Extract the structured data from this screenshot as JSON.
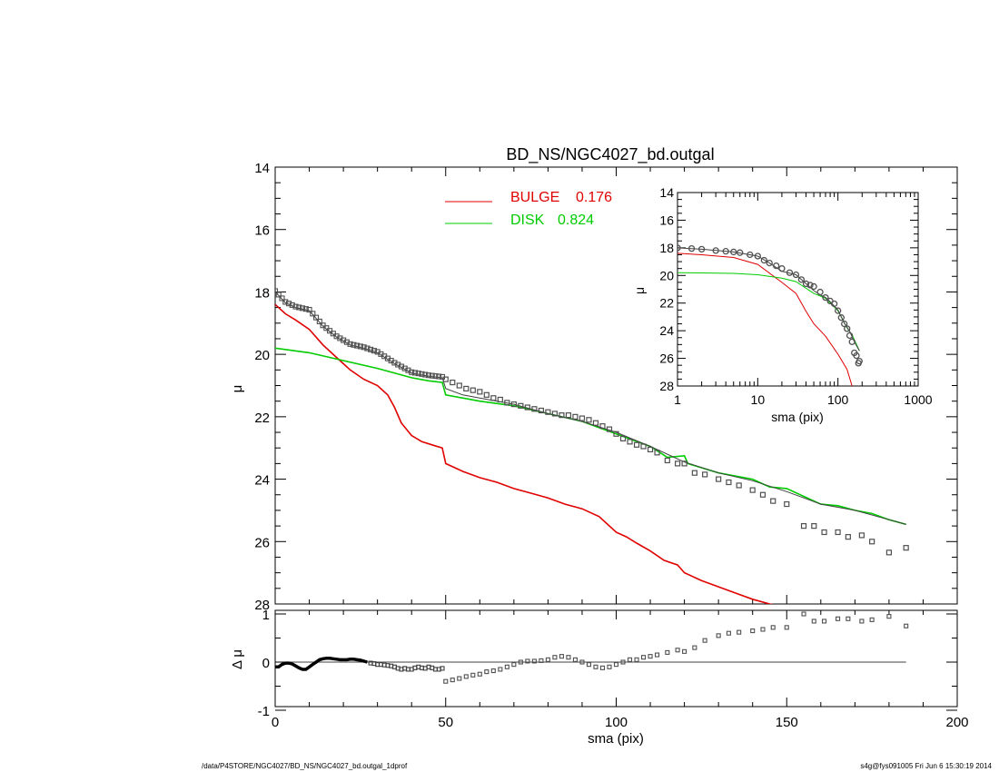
{
  "chart_data": [
    {
      "type": "line",
      "title": "BD_NS/NGC4027_bd.outgal",
      "xlabel": "",
      "ylabel": "μ",
      "xlim": [
        0,
        200
      ],
      "ylim": [
        28,
        14
      ],
      "y_inverted": true,
      "xticks": [
        0,
        50,
        100,
        150,
        200
      ],
      "yticks": [
        14,
        16,
        18,
        20,
        22,
        24,
        26,
        28
      ],
      "legend_placement": "top-center",
      "series": [
        {
          "name": "BULGE 0.176",
          "color": "#e00000",
          "x": [
            0,
            3,
            6,
            10,
            14,
            18,
            22,
            26,
            30,
            33,
            35,
            37,
            40,
            43,
            46,
            49,
            50,
            55,
            60,
            65,
            70,
            75,
            80,
            85,
            90,
            95,
            100,
            103,
            106,
            110,
            114,
            118,
            120,
            125,
            130,
            135,
            140,
            145,
            150
          ],
          "y": [
            18.4,
            18.7,
            18.9,
            19.2,
            19.7,
            20.1,
            20.5,
            20.8,
            21.0,
            21.3,
            21.7,
            22.2,
            22.6,
            22.8,
            22.9,
            23.0,
            23.5,
            23.75,
            23.95,
            24.1,
            24.3,
            24.45,
            24.6,
            24.8,
            24.95,
            25.2,
            25.7,
            25.85,
            26.05,
            26.3,
            26.6,
            26.75,
            27.0,
            27.25,
            27.45,
            27.65,
            27.85,
            28.0,
            28.1
          ]
        },
        {
          "name": "DISK 0.824",
          "color": "#00cc00",
          "x": [
            0,
            10,
            20,
            30,
            40,
            45,
            49,
            50,
            60,
            70,
            80,
            90,
            100,
            110,
            115,
            120,
            121,
            130,
            140,
            145,
            150,
            155,
            160,
            165,
            170,
            175,
            180,
            185
          ],
          "y": [
            19.8,
            19.95,
            20.2,
            20.45,
            20.75,
            20.85,
            20.9,
            21.3,
            21.5,
            21.65,
            21.9,
            22.15,
            22.55,
            22.95,
            23.3,
            23.25,
            23.5,
            23.8,
            24.0,
            24.25,
            24.3,
            24.55,
            24.8,
            24.85,
            25.0,
            25.1,
            25.3,
            25.45
          ]
        },
        {
          "name": "",
          "color": "#404040",
          "x": [
            0,
            3,
            6,
            10,
            14,
            18,
            22,
            26,
            30,
            35,
            40,
            45,
            49,
            50,
            55,
            60,
            70,
            80,
            90,
            100,
            110,
            120,
            130,
            140,
            150,
            160,
            170,
            180,
            185
          ],
          "y": [
            18.0,
            18.35,
            18.5,
            18.6,
            19.1,
            19.45,
            19.7,
            19.8,
            19.95,
            20.3,
            20.6,
            20.7,
            20.75,
            21.1,
            21.3,
            21.4,
            21.6,
            21.9,
            22.15,
            22.5,
            22.95,
            23.45,
            23.8,
            24.05,
            24.4,
            24.8,
            25.0,
            25.3,
            25.45
          ]
        },
        {
          "name": "",
          "color": "#505050",
          "marker": "square",
          "x": [
            50,
            52,
            54,
            56,
            58,
            60,
            62,
            64,
            66,
            68,
            70,
            72,
            74,
            76,
            78,
            80,
            82,
            84,
            86,
            88,
            90,
            92,
            94,
            96,
            98,
            100,
            102,
            104,
            106,
            108,
            110,
            112,
            115,
            118,
            120,
            123,
            126,
            130,
            133,
            136,
            140,
            143,
            146,
            150,
            155,
            158,
            161,
            165,
            168,
            172,
            175,
            180,
            185
          ],
          "y": [
            20.8,
            20.9,
            21.0,
            21.1,
            21.15,
            21.2,
            21.3,
            21.4,
            21.45,
            21.55,
            21.6,
            21.65,
            21.7,
            21.75,
            21.8,
            21.85,
            21.9,
            21.95,
            21.95,
            22.0,
            22.05,
            22.1,
            22.2,
            22.3,
            22.4,
            22.55,
            22.7,
            22.8,
            22.9,
            22.95,
            23.05,
            23.15,
            23.4,
            23.5,
            23.5,
            23.8,
            23.85,
            24.0,
            24.1,
            24.2,
            24.35,
            24.5,
            24.7,
            24.8,
            25.5,
            25.5,
            25.7,
            25.7,
            25.85,
            25.8,
            26.0,
            26.35,
            26.2
          ]
        }
      ]
    },
    {
      "type": "scatter",
      "title": "",
      "xlabel": "sma (pix)",
      "ylabel": "Δ μ",
      "xlim": [
        0,
        200
      ],
      "ylim": [
        -1,
        1
      ],
      "xticks": [
        0,
        50,
        100,
        150,
        200
      ],
      "yticks": [
        -1,
        0,
        1
      ],
      "series": [
        {
          "name": "",
          "color": "#000000",
          "x": [
            0,
            1,
            2,
            3,
            4,
            5,
            6,
            7,
            8,
            9,
            10,
            11,
            12,
            13,
            14,
            15,
            16,
            17,
            18,
            19,
            20,
            21,
            22,
            23,
            24,
            25,
            26,
            27,
            28,
            29,
            30,
            31,
            32,
            33,
            34,
            35,
            36,
            37,
            38,
            39,
            40,
            41,
            42,
            43,
            44,
            45,
            46,
            47,
            48,
            49
          ],
          "y": [
            -0.1,
            -0.1,
            -0.05,
            -0.02,
            -0.02,
            -0.04,
            -0.08,
            -0.12,
            -0.15,
            -0.15,
            -0.1,
            -0.05,
            0.0,
            0.05,
            0.07,
            0.08,
            0.08,
            0.07,
            0.06,
            0.05,
            0.05,
            0.05,
            0.06,
            0.06,
            0.05,
            0.04,
            0.02,
            0.0,
            -0.02,
            -0.03,
            -0.05,
            -0.05,
            -0.06,
            -0.07,
            -0.08,
            -0.1,
            -0.13,
            -0.15,
            -0.13,
            -0.15,
            -0.15,
            -0.12,
            -0.1,
            -0.12,
            -0.13,
            -0.1,
            -0.12,
            -0.15,
            -0.15,
            -0.13
          ]
        },
        {
          "name": "",
          "color": "#505050",
          "marker": "square",
          "x": [
            50,
            52,
            54,
            56,
            58,
            60,
            62,
            64,
            66,
            68,
            70,
            72,
            74,
            76,
            78,
            80,
            82,
            84,
            86,
            88,
            90,
            92,
            94,
            96,
            98,
            100,
            102,
            104,
            106,
            108,
            110,
            112,
            115,
            118,
            120,
            123,
            126,
            130,
            133,
            136,
            140,
            143,
            146,
            150,
            155,
            158,
            161,
            165,
            168,
            172,
            175,
            180,
            185
          ],
          "y": [
            -0.4,
            -0.37,
            -0.34,
            -0.3,
            -0.27,
            -0.25,
            -0.2,
            -0.18,
            -0.15,
            -0.1,
            -0.05,
            0.0,
            0.02,
            0.02,
            0.03,
            0.05,
            0.1,
            0.12,
            0.1,
            0.05,
            0.0,
            -0.05,
            -0.1,
            -0.12,
            -0.1,
            -0.05,
            0.0,
            0.05,
            0.05,
            0.1,
            0.12,
            0.15,
            0.2,
            0.25,
            0.22,
            0.3,
            0.45,
            0.55,
            0.6,
            0.62,
            0.65,
            0.68,
            0.72,
            0.72,
            1.0,
            0.85,
            0.85,
            0.9,
            0.9,
            0.85,
            0.88,
            0.95,
            0.75
          ]
        }
      ]
    },
    {
      "type": "line",
      "title": "",
      "xlabel": "sma (pix)",
      "ylabel": "μ",
      "x_scale": "log",
      "xlim": [
        1,
        1000
      ],
      "ylim": [
        28,
        14
      ],
      "y_inverted": true,
      "xticklabels": [
        "1",
        "10",
        "100",
        "1000"
      ],
      "yticks": [
        14,
        16,
        18,
        20,
        22,
        24,
        26,
        28
      ],
      "series": [
        {
          "name": "",
          "color": "#e00000",
          "x": [
            1,
            2,
            5,
            10,
            20,
            30,
            40,
            50,
            70,
            100,
            130,
            150
          ],
          "y": [
            18.4,
            18.5,
            18.7,
            19.2,
            20.5,
            21.3,
            22.6,
            23.5,
            24.4,
            25.7,
            26.8,
            28.0
          ]
        },
        {
          "name": "",
          "color": "#00cc00",
          "x": [
            1,
            2,
            5,
            10,
            20,
            30,
            50,
            70,
            100,
            130,
            150,
            185
          ],
          "y": [
            19.8,
            19.82,
            19.85,
            19.95,
            20.2,
            20.45,
            21.3,
            21.65,
            22.55,
            23.8,
            24.3,
            25.45
          ]
        },
        {
          "name": "",
          "color": "#404040",
          "x": [
            1,
            2,
            5,
            10,
            14,
            20,
            30,
            40,
            50,
            60,
            70,
            80,
            100,
            120,
            140,
            160,
            185
          ],
          "y": [
            18.0,
            18.1,
            18.3,
            18.6,
            19.1,
            19.7,
            19.95,
            20.6,
            21.1,
            21.4,
            21.6,
            21.9,
            22.5,
            23.45,
            24.05,
            24.8,
            25.45
          ]
        },
        {
          "name": "",
          "color": "#505050",
          "marker": "square",
          "x": [
            1,
            1.5,
            2,
            3,
            4,
            5,
            6,
            8,
            10,
            12,
            14,
            17,
            20,
            25,
            30,
            35,
            40,
            45,
            50,
            60,
            70,
            80,
            90,
            100,
            110,
            120,
            130,
            140,
            150,
            160,
            170,
            180,
            185
          ],
          "y": [
            18.0,
            18.05,
            18.1,
            18.2,
            18.25,
            18.3,
            18.35,
            18.5,
            18.6,
            18.9,
            19.1,
            19.3,
            19.5,
            19.8,
            19.95,
            20.3,
            20.6,
            20.7,
            20.8,
            21.2,
            21.6,
            21.85,
            22.05,
            22.55,
            23.05,
            23.5,
            23.85,
            24.35,
            24.8,
            25.6,
            25.8,
            26.35,
            26.2
          ]
        }
      ]
    }
  ],
  "legend": [
    {
      "name": "BULGE",
      "value": "0.176",
      "color": "#e00000"
    },
    {
      "name": "DISK",
      "value": "0.824",
      "color": "#00cc00"
    }
  ],
  "footer": {
    "left": "/data/P4STORE/NGC4027/BD_NS/NGC4027_bd.outgal_1dprof",
    "right": "s4g@fys091005  Fri Jun  6 15:30:19 2014"
  }
}
